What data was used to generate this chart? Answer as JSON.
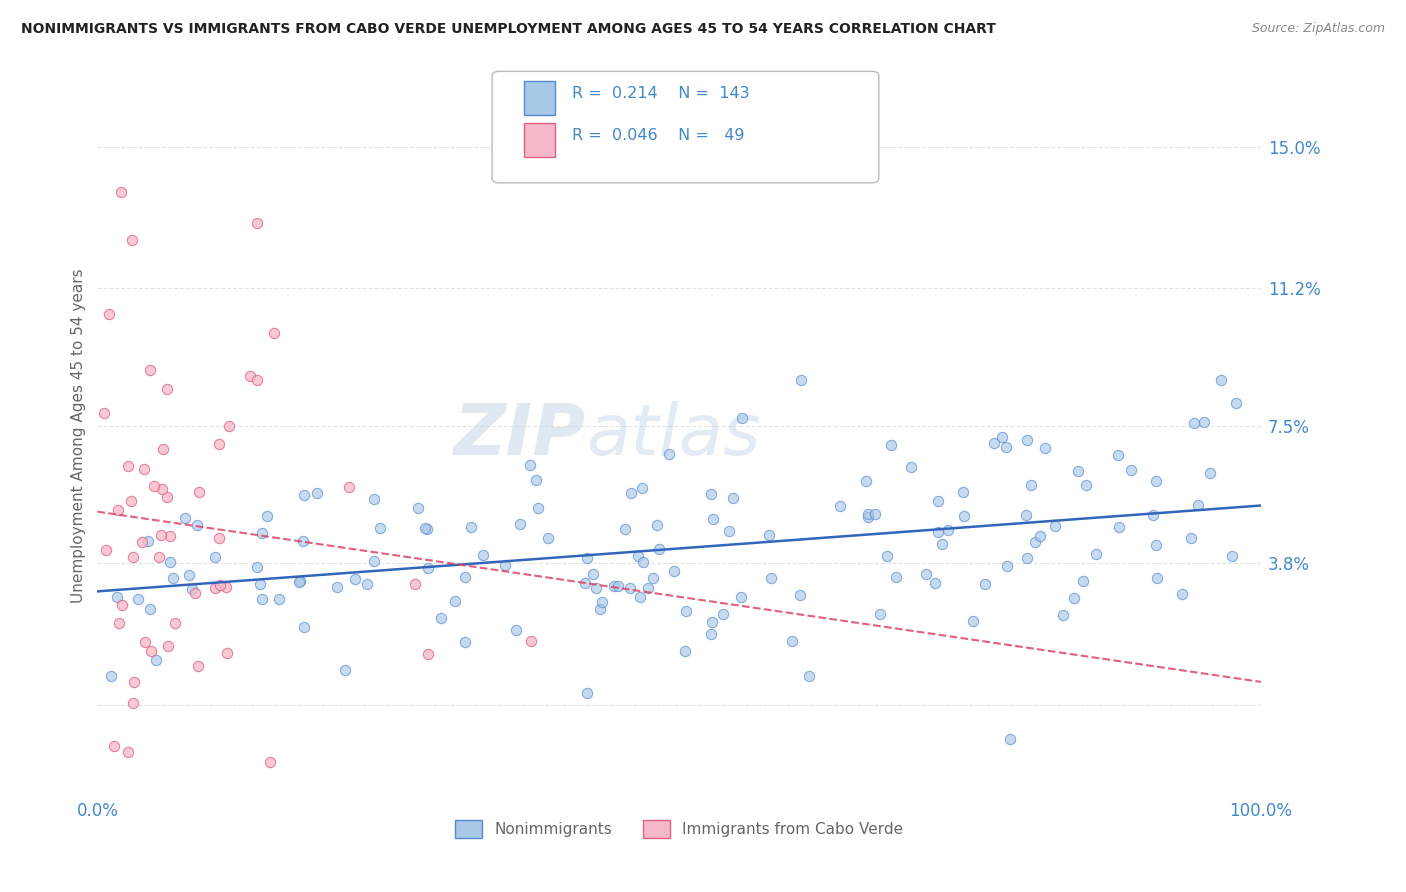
{
  "title": "NONIMMIGRANTS VS IMMIGRANTS FROM CABO VERDE UNEMPLOYMENT AMONG AGES 45 TO 54 YEARS CORRELATION CHART",
  "source": "Source: ZipAtlas.com",
  "ylabel": "Unemployment Among Ages 45 to 54 years",
  "watermark_zip": "ZIP",
  "watermark_atlas": "atlas",
  "nonimm_R": 0.214,
  "nonimm_N": 143,
  "imm_R": 0.046,
  "imm_N": 49,
  "xlim": [
    0,
    100
  ],
  "ylim": [
    -2.5,
    17
  ],
  "yticks": [
    0,
    3.8,
    7.5,
    11.2,
    15.0
  ],
  "grid_color": "#dddddd",
  "nonimm_color": "#a8c8e8",
  "imm_color": "#f5b8c8",
  "nonimm_edge_color": "#5588cc",
  "imm_edge_color": "#e06080",
  "nonimm_line_color": "#3366bb",
  "imm_line_color": "#dd4466",
  "bg_color": "#ffffff",
  "title_color": "#222222",
  "axis_label_color": "#666666",
  "tick_label_color": "#4488cc",
  "legend_box_color": "#f8f8f8",
  "legend_border_color": "#bbbbbb"
}
